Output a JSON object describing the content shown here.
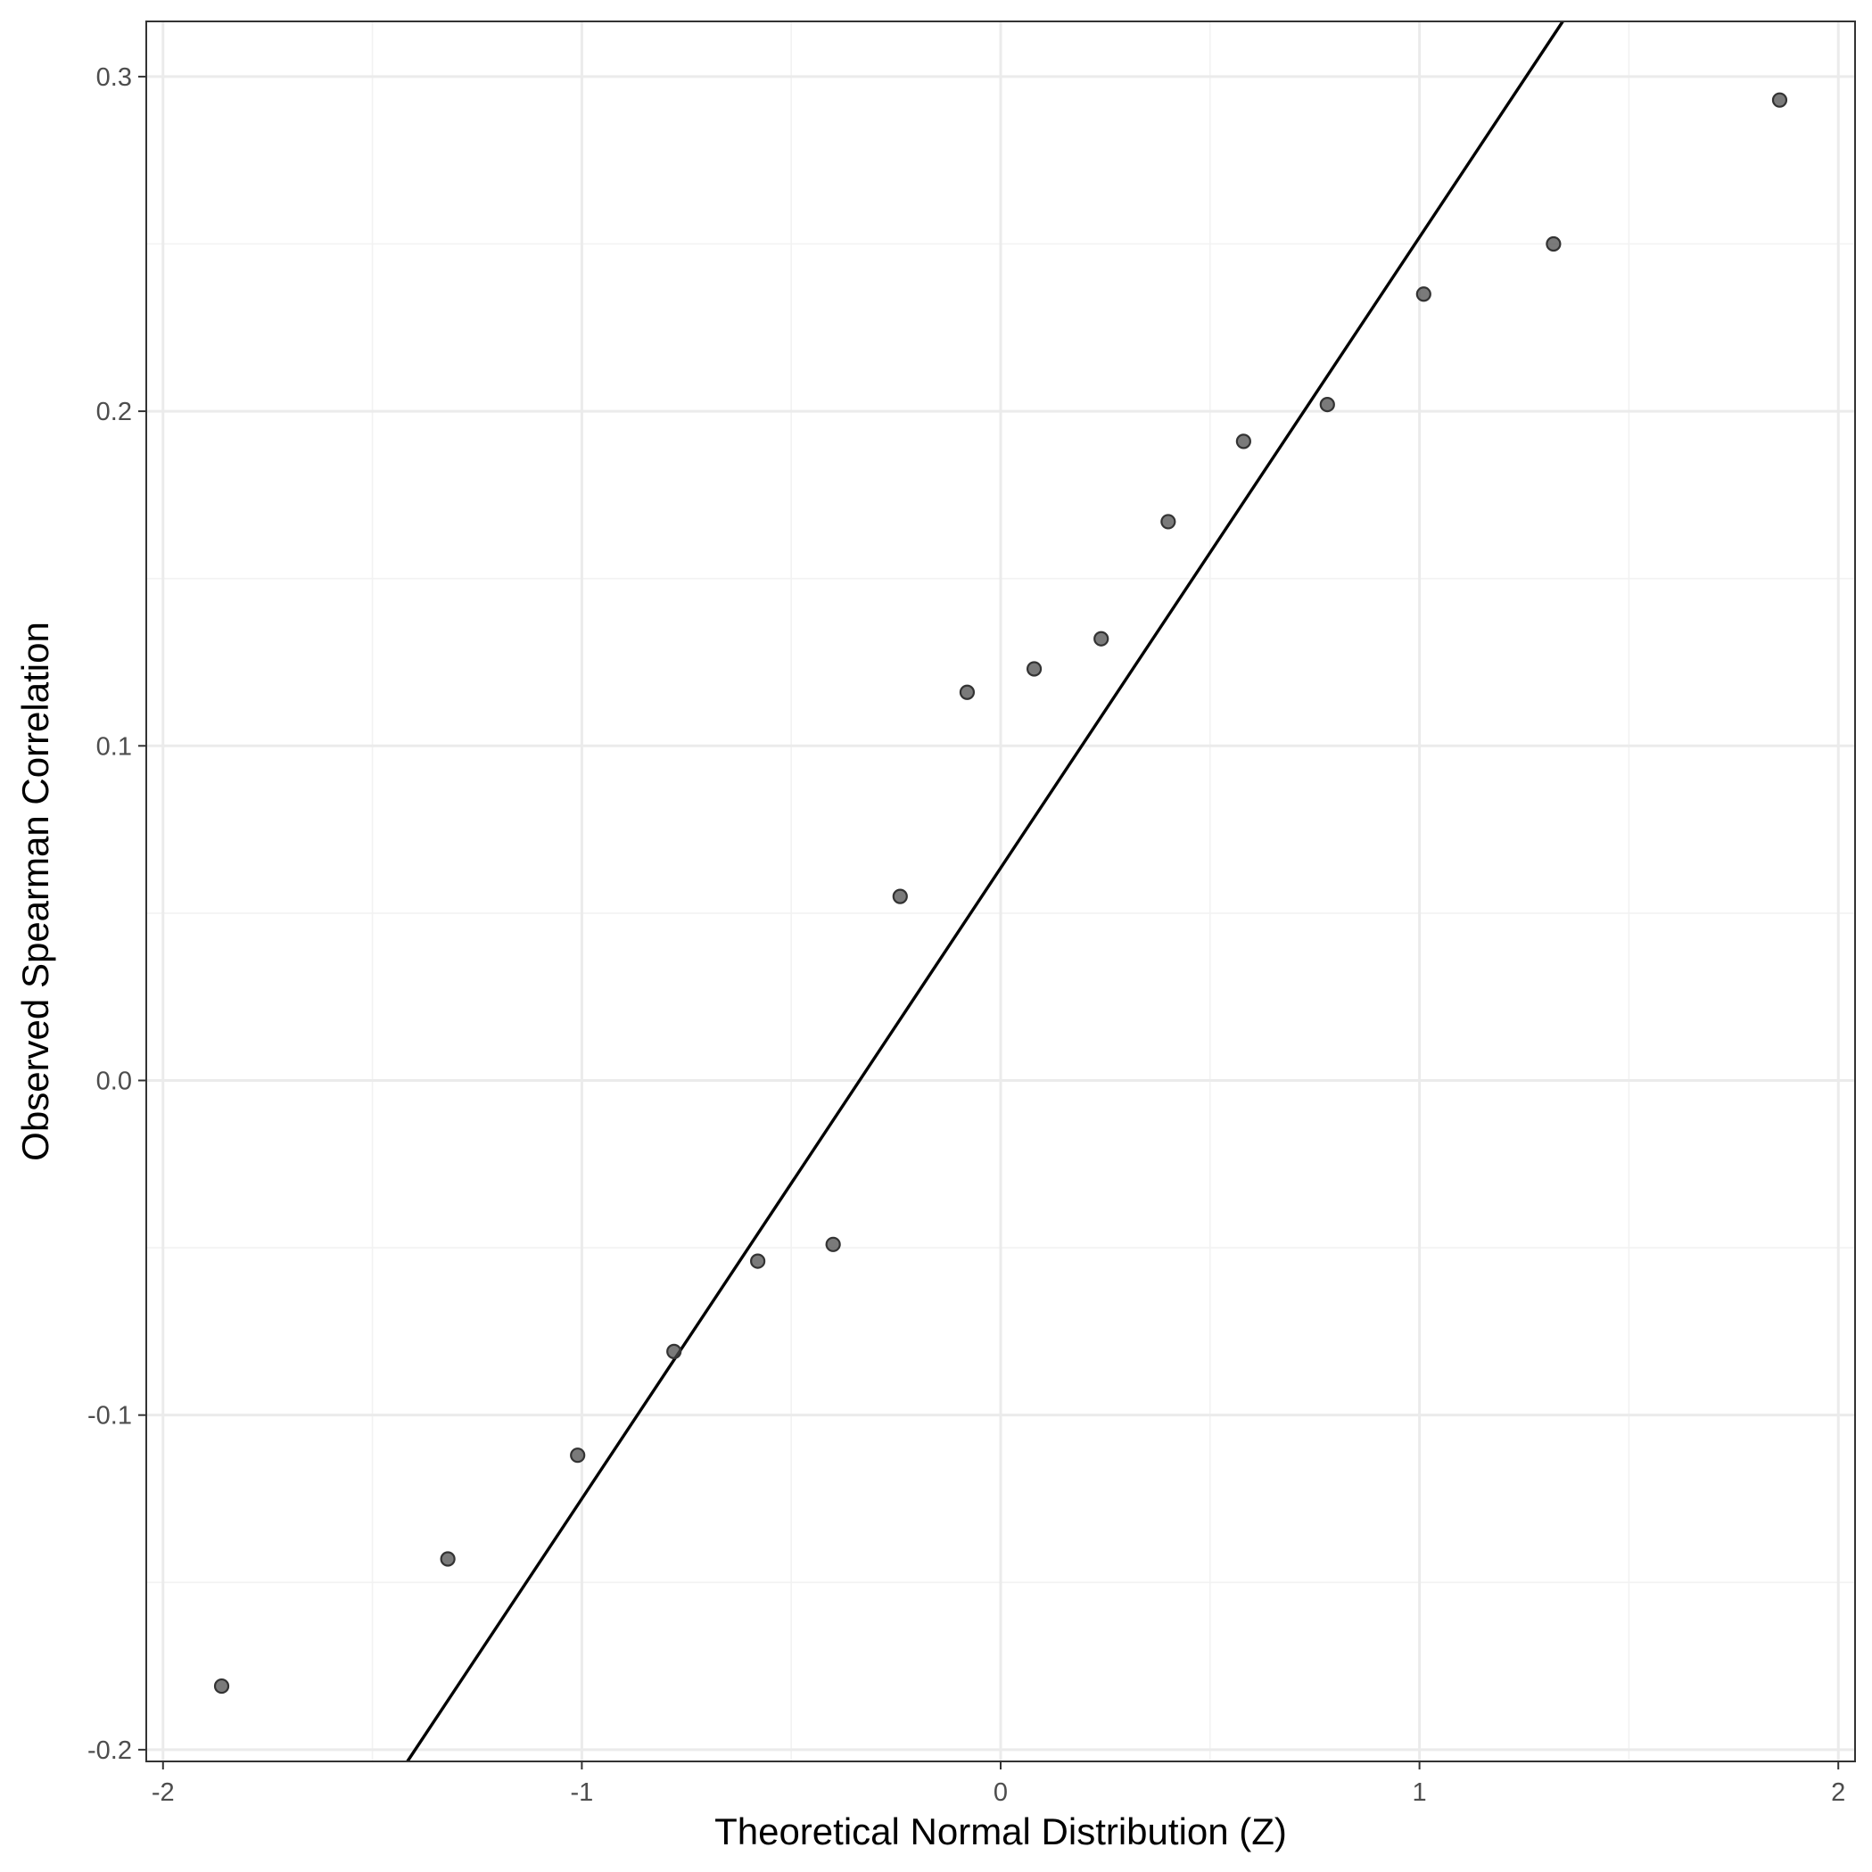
{
  "chart_data": {
    "type": "scatter",
    "title": "",
    "xlabel": "Theoretical Normal Distribution (Z)",
    "ylabel": "Observed Spearman Correlation",
    "xlim": [
      -2.04,
      2.04
    ],
    "ylim": [
      -0.2035,
      0.3165
    ],
    "x_ticks": [
      -2,
      -1,
      0,
      1,
      2
    ],
    "x_tick_labels": [
      "-2",
      "-1",
      "0",
      "1",
      "2"
    ],
    "y_ticks": [
      -0.2,
      -0.1,
      0.0,
      0.1,
      0.2,
      0.3
    ],
    "y_tick_labels": [
      "-0.2",
      "-0.1",
      "0.0",
      "0.1",
      "0.2",
      "0.3"
    ],
    "grid": true,
    "legend": "none",
    "point_color": "#4d4d4d",
    "line_color": "#000000",
    "series": [
      {
        "type": "points",
        "x": [
          -1.86,
          -1.32,
          -1.01,
          -0.78,
          -0.58,
          -0.4,
          -0.24,
          -0.08,
          0.08,
          0.24,
          0.4,
          0.58,
          0.78,
          1.01,
          1.32,
          1.86
        ],
        "y": [
          -0.181,
          -0.143,
          -0.112,
          -0.081,
          -0.054,
          -0.049,
          0.055,
          0.116,
          0.123,
          0.132,
          0.167,
          0.191,
          0.202,
          0.235,
          0.25,
          0.293
        ]
      },
      {
        "type": "reference_line",
        "intercept": 0.0635,
        "slope": 0.1885
      }
    ]
  }
}
